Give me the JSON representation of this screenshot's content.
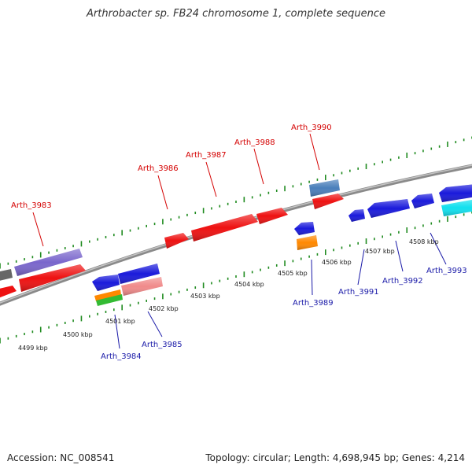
{
  "title": "Arthrobacter sp. FB24 chromosome 1, complete sequence",
  "footer": {
    "accession": "Accession: NC_008541",
    "summary": "Topology: circular; Length: 4,698,945 bp; Genes: 4,214"
  },
  "colors": {
    "forward_gene": "#ee1111",
    "reverse_gene": "#1a1adb",
    "backbone": "#8a8a8a",
    "tick": "#1e8a1e",
    "label_top": "#d40000",
    "label_bottom": "#1a1aa8"
  },
  "kbp_labels": [
    "4499 kbp",
    "4500 kbp",
    "4501 kbp",
    "4502 kbp",
    "4503 kbp",
    "4504 kbp",
    "4505 kbp",
    "4506 kbp",
    "4507 kbp",
    "4508 kbp"
  ],
  "top_labels": [
    "Arth_3983",
    "Arth_3986",
    "Arth_3987",
    "Arth_3988",
    "Arth_3990"
  ],
  "bottom_labels": [
    "Arth_3984",
    "Arth_3985",
    "Arth_3989",
    "Arth_3991",
    "Arth_3992",
    "Arth_3993"
  ]
}
